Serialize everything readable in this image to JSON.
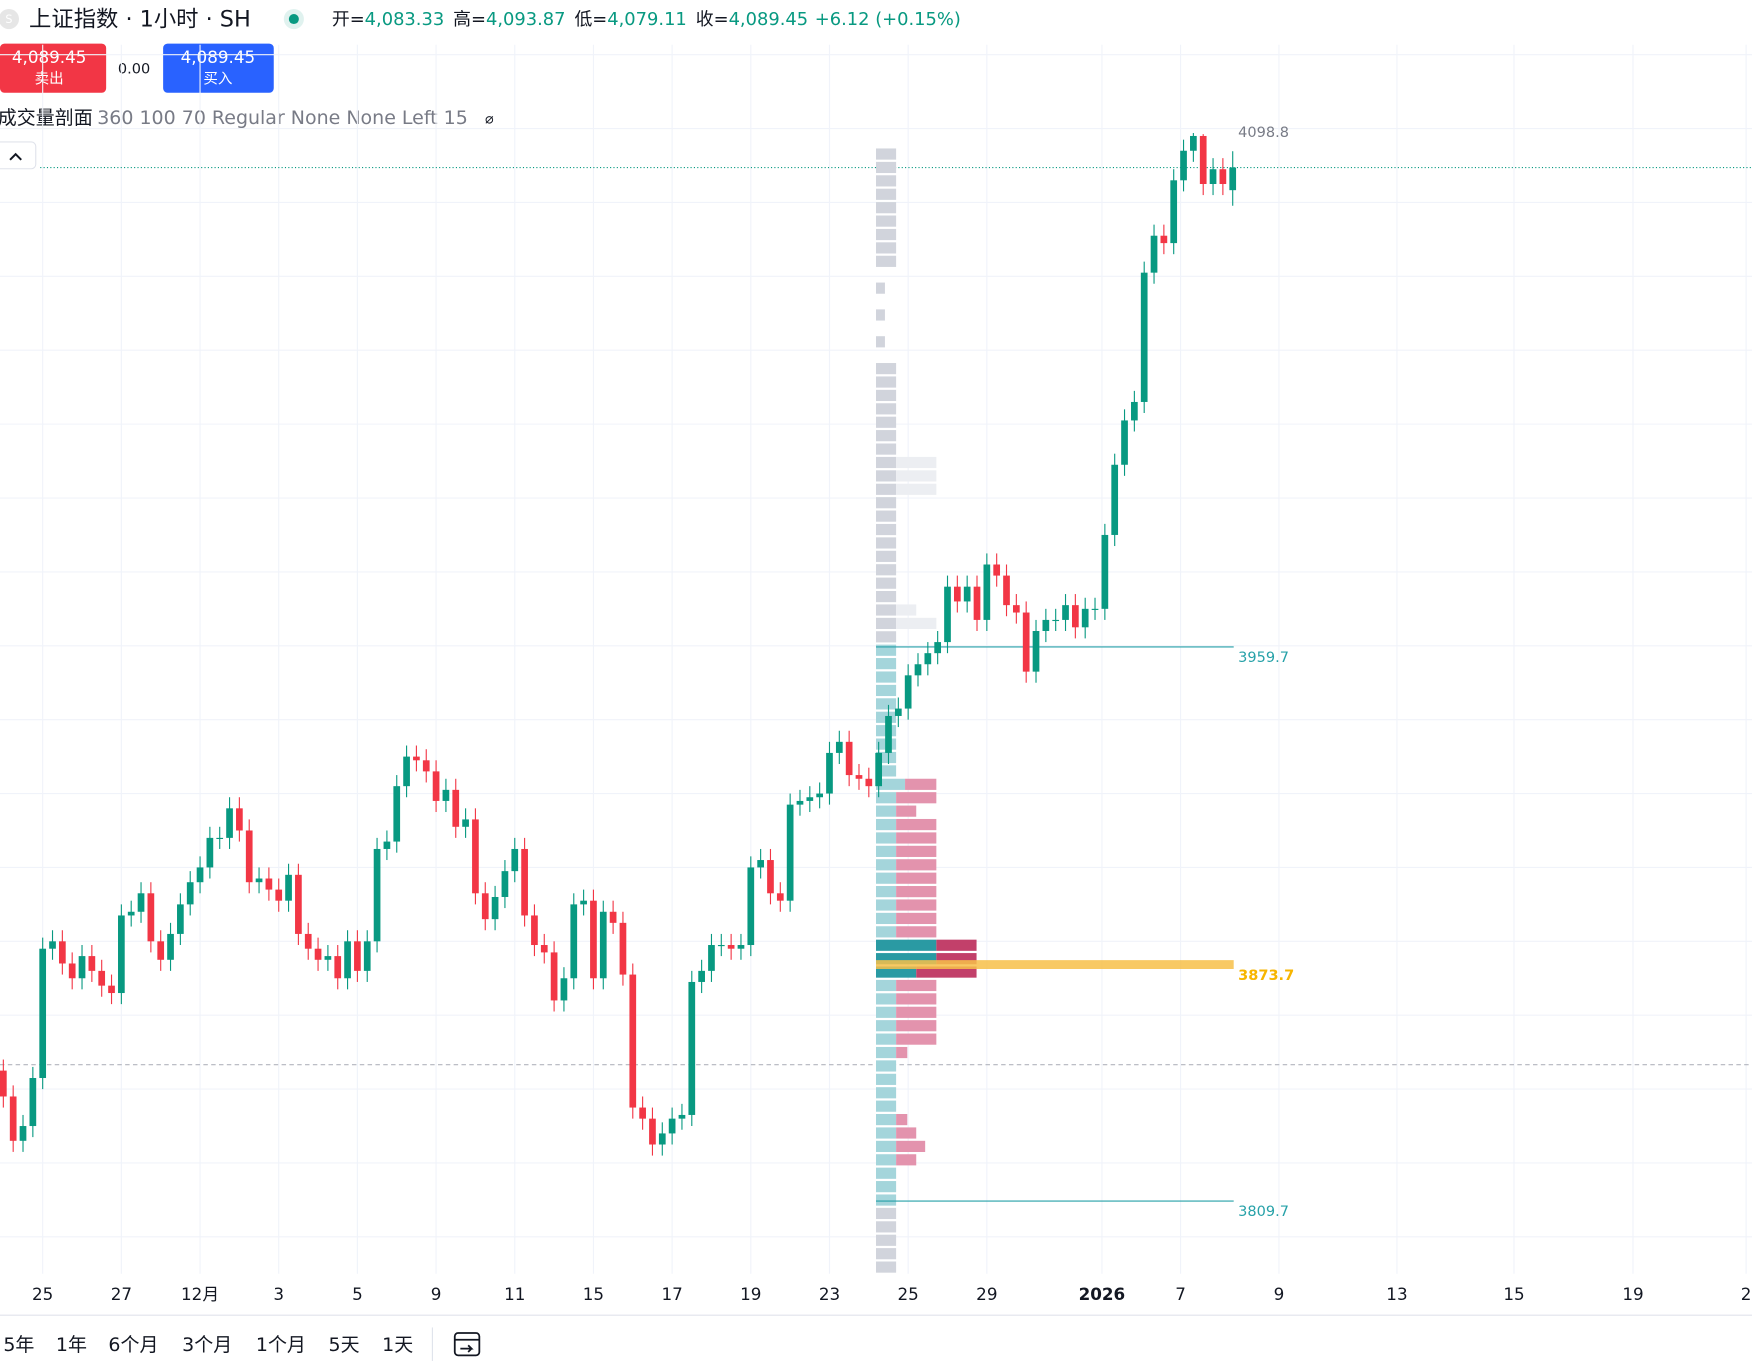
{
  "header": {
    "title": "上证指数 · 1小时 · SH",
    "icon": "S",
    "ohlc": [
      {
        "label": "开=",
        "value": "4,083.33"
      },
      {
        "label": "高=",
        "value": "4,093.87"
      },
      {
        "label": "低=",
        "value": "4,079.11"
      },
      {
        "label": "收=",
        "value": "4,089.45"
      }
    ],
    "change": "+6.12 (+0.15%)"
  },
  "trade": {
    "sell_price": "4,089.45",
    "sell": "卖出",
    "spread": "0.00",
    "buy_price": "4,089.45",
    "buy": "买入"
  },
  "indicator": {
    "name": "成交量剖面",
    "params": "360 100 70 Regular None None Left 15",
    "icon": "⌀"
  },
  "timeframes": [
    "5年",
    "1年",
    "6个月",
    "3个月",
    "1个月",
    "5天",
    "1天"
  ],
  "chart_data": {
    "type": "candlestick",
    "up_color": "#089981",
    "down_color": "#f23645",
    "ylim": [
      3790,
      4122.7
    ],
    "xlim": [
      -0.34,
      177.8
    ],
    "ygrid": [
      3800,
      3820,
      3840,
      3860,
      3880,
      3900,
      3920,
      3940,
      3960,
      3980,
      4000,
      4020,
      4040,
      4060,
      4080,
      4100,
      4120
    ],
    "xticks": [
      {
        "value": 4,
        "label": "25"
      },
      {
        "value": 12,
        "label": "27"
      },
      {
        "value": 20,
        "label": "12月"
      },
      {
        "value": 28,
        "label": "3"
      },
      {
        "value": 36,
        "label": "5"
      },
      {
        "value": 44,
        "label": "9"
      },
      {
        "value": 52,
        "label": "11"
      },
      {
        "value": 60,
        "label": "15"
      },
      {
        "value": 68,
        "label": "17"
      },
      {
        "value": 76,
        "label": "19"
      },
      {
        "value": 84,
        "label": "23"
      },
      {
        "value": 92,
        "label": "25"
      },
      {
        "value": 100,
        "label": "29"
      },
      {
        "value": 111.7,
        "label": "2026",
        "bold": true
      },
      {
        "value": 119.7,
        "label": "7"
      },
      {
        "value": 129.7,
        "label": "9"
      },
      {
        "value": 141.7,
        "label": "13"
      },
      {
        "value": 153.6,
        "label": "15"
      },
      {
        "value": 165.7,
        "label": "19"
      },
      {
        "value": 177.2,
        "label": "2"
      }
    ],
    "candles": [
      [
        3845,
        3848,
        3835,
        3838
      ],
      [
        3838,
        3841,
        3823,
        3826
      ],
      [
        3826,
        3833,
        3823,
        3830
      ],
      [
        3830,
        3846,
        3827,
        3843
      ],
      [
        3843,
        3881,
        3840,
        3878
      ],
      [
        3878,
        3883,
        3875,
        3880
      ],
      [
        3880,
        3883,
        3871,
        3874
      ],
      [
        3874,
        3877,
        3867,
        3870
      ],
      [
        3870,
        3879,
        3867,
        3876
      ],
      [
        3876,
        3879,
        3869,
        3872
      ],
      [
        3872,
        3875,
        3865,
        3868
      ],
      [
        3868,
        3871,
        3863,
        3866
      ],
      [
        3866,
        3890,
        3863,
        3887
      ],
      [
        3887,
        3891,
        3884,
        3888
      ],
      [
        3888,
        3896,
        3885,
        3893
      ],
      [
        3893,
        3896,
        3877,
        3880
      ],
      [
        3880,
        3883,
        3872,
        3875
      ],
      [
        3875,
        3885,
        3872,
        3882
      ],
      [
        3882,
        3893,
        3879,
        3890
      ],
      [
        3890,
        3899,
        3887,
        3896
      ],
      [
        3896,
        3903,
        3893,
        3900
      ],
      [
        3900,
        3911,
        3897,
        3908
      ],
      [
        3908,
        3911,
        3905,
        3908
      ],
      [
        3908,
        3919,
        3905,
        3916
      ],
      [
        3916,
        3919,
        3907,
        3910
      ],
      [
        3910,
        3913,
        3893,
        3896
      ],
      [
        3896,
        3900,
        3893,
        3897
      ],
      [
        3897,
        3900,
        3891,
        3894
      ],
      [
        3894,
        3897,
        3888,
        3891
      ],
      [
        3891,
        3901,
        3888,
        3898
      ],
      [
        3898,
        3901,
        3879,
        3882
      ],
      [
        3882,
        3885,
        3875,
        3878
      ],
      [
        3878,
        3881,
        3872,
        3875
      ],
      [
        3875,
        3879,
        3872,
        3876
      ],
      [
        3876,
        3879,
        3867,
        3870
      ],
      [
        3870,
        3883,
        3867,
        3880
      ],
      [
        3880,
        3883,
        3869,
        3872
      ],
      [
        3872,
        3883,
        3869,
        3880
      ],
      [
        3880,
        3908,
        3877,
        3905
      ],
      [
        3905,
        3910,
        3902,
        3907
      ],
      [
        3907,
        3925,
        3904,
        3922
      ],
      [
        3922,
        3933,
        3919,
        3930
      ],
      [
        3930,
        3933,
        3926,
        3929
      ],
      [
        3929,
        3932,
        3923,
        3926
      ],
      [
        3926,
        3929,
        3915,
        3918
      ],
      [
        3918,
        3924,
        3915,
        3921
      ],
      [
        3921,
        3924,
        3908,
        3911
      ],
      [
        3911,
        3916,
        3908,
        3913
      ],
      [
        3913,
        3916,
        3890,
        3893
      ],
      [
        3893,
        3896,
        3883,
        3886
      ],
      [
        3886,
        3895,
        3883,
        3892
      ],
      [
        3892,
        3902,
        3889,
        3899
      ],
      [
        3899,
        3908,
        3896,
        3905
      ],
      [
        3905,
        3908,
        3884,
        3887
      ],
      [
        3887,
        3890,
        3876,
        3879
      ],
      [
        3879,
        3882,
        3874,
        3877
      ],
      [
        3877,
        3880,
        3861,
        3864
      ],
      [
        3864,
        3873,
        3861,
        3870
      ],
      [
        3870,
        3893,
        3867,
        3890
      ],
      [
        3890,
        3894,
        3887,
        3891
      ],
      [
        3891,
        3894,
        3867,
        3870
      ],
      [
        3870,
        3891,
        3867,
        3888
      ],
      [
        3888,
        3891,
        3882,
        3885
      ],
      [
        3885,
        3888,
        3868,
        3871
      ],
      [
        3871,
        3874,
        3832,
        3835
      ],
      [
        3835,
        3838,
        3829,
        3832
      ],
      [
        3832,
        3835,
        3822,
        3825
      ],
      [
        3825,
        3831,
        3822,
        3828
      ],
      [
        3828,
        3835,
        3825,
        3832
      ],
      [
        3832,
        3836,
        3829,
        3833
      ],
      [
        3833,
        3872,
        3830,
        3869
      ],
      [
        3869,
        3875,
        3866,
        3872
      ],
      [
        3872,
        3882,
        3869,
        3879
      ],
      [
        3879,
        3882,
        3876,
        3879
      ],
      [
        3879,
        3882,
        3875,
        3878
      ],
      [
        3878,
        3882,
        3875,
        3879
      ],
      [
        3879,
        3903,
        3876,
        3900
      ],
      [
        3900,
        3905,
        3897,
        3902
      ],
      [
        3902,
        3905,
        3890,
        3893
      ],
      [
        3893,
        3896,
        3888,
        3891
      ],
      [
        3891,
        3920,
        3888,
        3917
      ],
      [
        3917,
        3921,
        3914,
        3918
      ],
      [
        3918,
        3922,
        3915,
        3919
      ],
      [
        3919,
        3923,
        3916,
        3920
      ],
      [
        3920,
        3934,
        3917,
        3931
      ],
      [
        3931,
        3937,
        3928,
        3934
      ],
      [
        3934,
        3937,
        3922,
        3925
      ],
      [
        3925,
        3928,
        3921,
        3924
      ],
      [
        3924,
        3927,
        3919,
        3922
      ],
      [
        3922,
        3934,
        3919,
        3931
      ],
      [
        3931,
        3944,
        3928,
        3941
      ],
      [
        3941,
        3946,
        3938,
        3943
      ],
      [
        3943,
        3955,
        3940,
        3952
      ],
      [
        3952,
        3958,
        3949,
        3955
      ],
      [
        3955,
        3961,
        3952,
        3958
      ],
      [
        3958,
        3964,
        3955,
        3961
      ],
      [
        3961,
        3979,
        3958,
        3976
      ],
      [
        3976,
        3979,
        3969,
        3972
      ],
      [
        3972,
        3979,
        3969,
        3976
      ],
      [
        3976,
        3979,
        3964,
        3967
      ],
      [
        3967,
        3985,
        3964,
        3982
      ],
      [
        3982,
        3985,
        3976,
        3979
      ],
      [
        3979,
        3982,
        3968,
        3971
      ],
      [
        3971,
        3974,
        3966,
        3969
      ],
      [
        3969,
        3972,
        3950,
        3953
      ],
      [
        3953,
        3967,
        3950,
        3964
      ],
      [
        3964,
        3970,
        3961,
        3967
      ],
      [
        3967,
        3970,
        3964,
        3967
      ],
      [
        3967,
        3974,
        3964,
        3971
      ],
      [
        3971,
        3974,
        3962,
        3965
      ],
      [
        3965,
        3973,
        3962,
        3970
      ],
      [
        3970,
        3973,
        3967,
        3970
      ],
      [
        3970,
        3993,
        3967,
        3990
      ],
      [
        3990,
        4012,
        3987,
        4009
      ],
      [
        4009,
        4024,
        4006,
        4021
      ],
      [
        4021,
        4029,
        4018,
        4026
      ],
      [
        4026,
        4064,
        4023,
        4061
      ],
      [
        4061,
        4074,
        4058,
        4071
      ],
      [
        4071,
        4074,
        4066,
        4069
      ],
      [
        4069,
        4089,
        4066,
        4086
      ],
      [
        4086,
        4097,
        4083,
        4094
      ],
      [
        4094,
        4098.8,
        4091,
        4098
      ],
      [
        4098,
        4098.5,
        4082,
        4085
      ],
      [
        4085,
        4092,
        4082,
        4089
      ],
      [
        4089,
        4092,
        4082,
        4085
      ],
      [
        4083.33,
        4093.87,
        4079.11,
        4089.45
      ]
    ],
    "last_price": 4089.45,
    "reference_level": 3846.6,
    "high_label": 4098.8,
    "volume_profile": {
      "low": 3790,
      "row_height": 3.63,
      "vah": 3959.7,
      "val": 3809.7,
      "poc": 3873.7,
      "up": [
        18,
        18,
        18,
        18,
        18,
        18,
        18,
        18,
        18,
        18,
        18,
        18,
        18,
        18,
        18,
        18,
        18,
        18,
        18,
        18,
        18,
        18,
        36,
        54,
        54,
        18,
        18,
        18,
        18,
        18,
        18,
        18,
        18,
        18,
        18,
        18,
        26,
        18,
        18,
        18,
        18,
        18,
        18,
        18,
        18,
        18,
        18,
        18,
        18,
        18,
        18,
        18,
        18,
        18,
        18,
        18,
        18,
        18,
        18,
        18,
        18,
        18,
        18,
        18,
        18,
        18,
        18,
        18,
        0,
        8,
        0,
        8,
        0,
        8,
        0,
        18,
        18,
        18,
        18,
        18,
        18,
        18,
        18,
        18
      ],
      "down": [
        0,
        0,
        0,
        0,
        0,
        0,
        0,
        0,
        18,
        26,
        18,
        10,
        0,
        0,
        0,
        0,
        10,
        36,
        36,
        36,
        36,
        36,
        54,
        36,
        36,
        36,
        36,
        36,
        36,
        36,
        36,
        36,
        36,
        36,
        18,
        36,
        28,
        0,
        0,
        0,
        0,
        0,
        0,
        0,
        0,
        0,
        0,
        0,
        36,
        18,
        0,
        0,
        0,
        0,
        0,
        0,
        0,
        0,
        36,
        36,
        36,
        0,
        0,
        0,
        0,
        0,
        0,
        0,
        0,
        0,
        0,
        0,
        0,
        0,
        0,
        0,
        0,
        0,
        0,
        0,
        0,
        0,
        0,
        0
      ]
    }
  }
}
